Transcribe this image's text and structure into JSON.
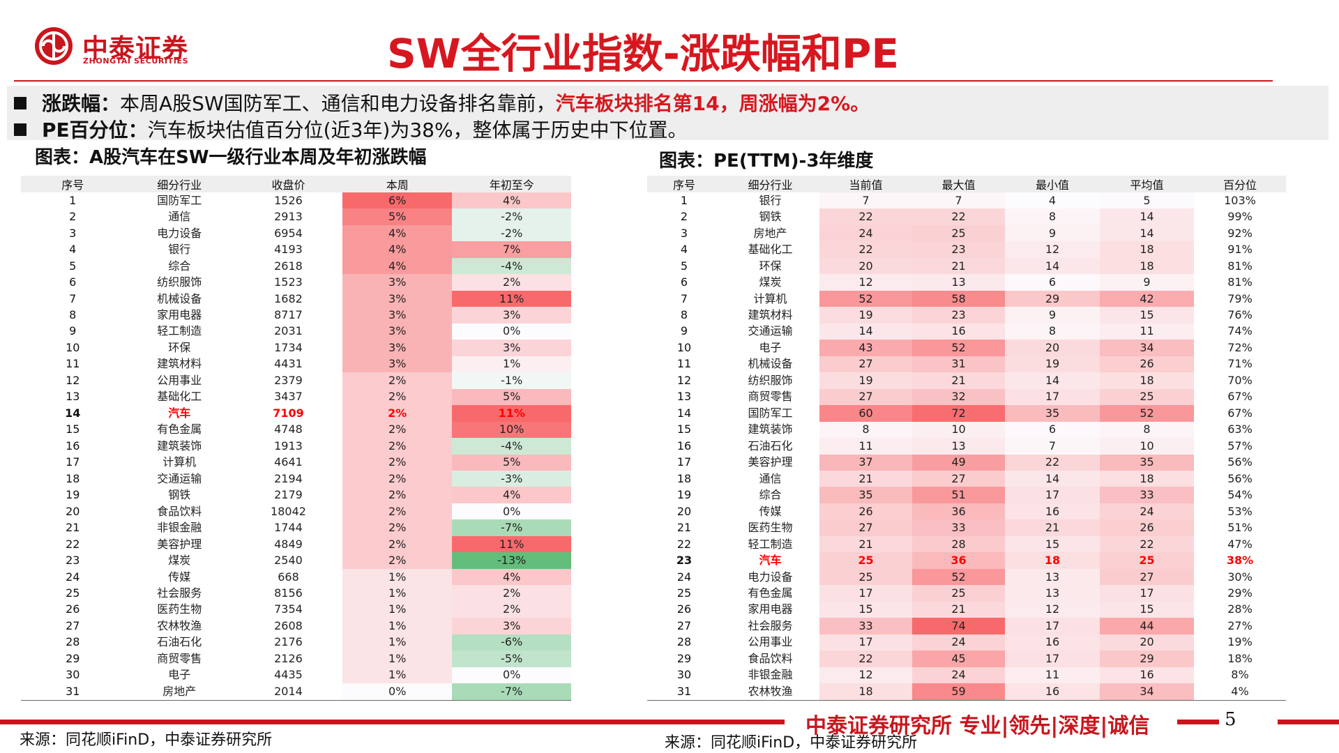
{
  "header": {
    "logo_cn": "中泰证券",
    "logo_en": "ZHONGTAI SECURITIES",
    "title": "SW全行业指数-涨跌幅和PE"
  },
  "bullets": {
    "b1_label": "涨跌幅：",
    "b1_text": "本周A股SW国防军工、通信和电力设备排名靠前，",
    "b1_red": "汽车板块排名第14，周涨幅为2%。",
    "b2_label": "PE百分位：",
    "b2_text": "汽车板块估值百分位(近3年)为38%，整体属于历史中下位置。"
  },
  "table1": {
    "title": "图表：A股汽车在SW一级行业本周及年初涨跌幅",
    "headers": [
      "序号",
      "细分行业",
      "收盘价",
      "本周",
      "年初至今"
    ],
    "highlight_index": 13,
    "rows": [
      [
        "1",
        "国防军工",
        "1526",
        "6%",
        "4%"
      ],
      [
        "2",
        "通信",
        "2913",
        "5%",
        "-2%"
      ],
      [
        "3",
        "电力设备",
        "6954",
        "4%",
        "-2%"
      ],
      [
        "4",
        "银行",
        "4193",
        "4%",
        "7%"
      ],
      [
        "5",
        "综合",
        "2618",
        "4%",
        "-4%"
      ],
      [
        "6",
        "纺织服饰",
        "1523",
        "3%",
        "2%"
      ],
      [
        "7",
        "机械设备",
        "1682",
        "3%",
        "11%"
      ],
      [
        "8",
        "家用电器",
        "8717",
        "3%",
        "3%"
      ],
      [
        "9",
        "轻工制造",
        "2031",
        "3%",
        "0%"
      ],
      [
        "10",
        "环保",
        "1734",
        "3%",
        "3%"
      ],
      [
        "11",
        "建筑材料",
        "4431",
        "3%",
        "1%"
      ],
      [
        "12",
        "公用事业",
        "2379",
        "2%",
        "-1%"
      ],
      [
        "13",
        "基础化工",
        "3437",
        "2%",
        "5%"
      ],
      [
        "14",
        "汽车",
        "7109",
        "2%",
        "11%"
      ],
      [
        "15",
        "有色金属",
        "4748",
        "2%",
        "10%"
      ],
      [
        "16",
        "建筑装饰",
        "1913",
        "2%",
        "-4%"
      ],
      [
        "17",
        "计算机",
        "4641",
        "2%",
        "5%"
      ],
      [
        "18",
        "交通运输",
        "2194",
        "2%",
        "-3%"
      ],
      [
        "19",
        "钢铁",
        "2179",
        "2%",
        "4%"
      ],
      [
        "20",
        "食品饮料",
        "18042",
        "2%",
        "0%"
      ],
      [
        "21",
        "非银金融",
        "1744",
        "2%",
        "-7%"
      ],
      [
        "22",
        "美容护理",
        "4849",
        "2%",
        "11%"
      ],
      [
        "23",
        "煤炭",
        "2540",
        "2%",
        "-13%"
      ],
      [
        "24",
        "传媒",
        "668",
        "1%",
        "4%"
      ],
      [
        "25",
        "社会服务",
        "8156",
        "1%",
        "2%"
      ],
      [
        "26",
        "医药生物",
        "7354",
        "1%",
        "2%"
      ],
      [
        "27",
        "农林牧渔",
        "2608",
        "1%",
        "3%"
      ],
      [
        "28",
        "石油石化",
        "2176",
        "1%",
        "-6%"
      ],
      [
        "29",
        "商贸零售",
        "2126",
        "1%",
        "-5%"
      ],
      [
        "30",
        "电子",
        "4435",
        "1%",
        "0%"
      ],
      [
        "31",
        "房地产",
        "2014",
        "0%",
        "-7%"
      ]
    ]
  },
  "table2": {
    "title": "图表：PE(TTM)-3年维度",
    "headers": [
      "序号",
      "细分行业",
      "当前值",
      "最大值",
      "最小值",
      "平均值",
      "百分位"
    ],
    "highlight_index": 22,
    "rows": [
      [
        "1",
        "银行",
        "7",
        "7",
        "4",
        "5",
        "103%"
      ],
      [
        "2",
        "钢铁",
        "22",
        "22",
        "8",
        "14",
        "99%"
      ],
      [
        "3",
        "房地产",
        "24",
        "25",
        "9",
        "14",
        "92%"
      ],
      [
        "4",
        "基础化工",
        "22",
        "23",
        "12",
        "18",
        "91%"
      ],
      [
        "5",
        "环保",
        "20",
        "21",
        "14",
        "18",
        "81%"
      ],
      [
        "6",
        "煤炭",
        "12",
        "13",
        "6",
        "9",
        "81%"
      ],
      [
        "7",
        "计算机",
        "52",
        "58",
        "29",
        "42",
        "79%"
      ],
      [
        "8",
        "建筑材料",
        "19",
        "23",
        "9",
        "15",
        "76%"
      ],
      [
        "9",
        "交通运输",
        "14",
        "16",
        "8",
        "11",
        "74%"
      ],
      [
        "10",
        "电子",
        "43",
        "52",
        "20",
        "34",
        "72%"
      ],
      [
        "11",
        "机械设备",
        "27",
        "31",
        "19",
        "26",
        "71%"
      ],
      [
        "12",
        "纺织服饰",
        "19",
        "21",
        "14",
        "18",
        "70%"
      ],
      [
        "13",
        "商贸零售",
        "27",
        "32",
        "17",
        "25",
        "67%"
      ],
      [
        "14",
        "国防军工",
        "60",
        "72",
        "35",
        "52",
        "67%"
      ],
      [
        "15",
        "建筑装饰",
        "8",
        "10",
        "6",
        "8",
        "63%"
      ],
      [
        "16",
        "石油石化",
        "11",
        "13",
        "7",
        "10",
        "57%"
      ],
      [
        "17",
        "美容护理",
        "37",
        "49",
        "22",
        "35",
        "56%"
      ],
      [
        "18",
        "通信",
        "21",
        "27",
        "14",
        "18",
        "56%"
      ],
      [
        "19",
        "综合",
        "35",
        "51",
        "17",
        "33",
        "54%"
      ],
      [
        "20",
        "传媒",
        "26",
        "36",
        "16",
        "24",
        "53%"
      ],
      [
        "21",
        "医药生物",
        "27",
        "33",
        "21",
        "26",
        "51%"
      ],
      [
        "22",
        "轻工制造",
        "21",
        "28",
        "15",
        "22",
        "47%"
      ],
      [
        "23",
        "汽车",
        "25",
        "36",
        "18",
        "25",
        "38%"
      ],
      [
        "24",
        "电力设备",
        "25",
        "52",
        "13",
        "27",
        "30%"
      ],
      [
        "25",
        "有色金属",
        "17",
        "25",
        "13",
        "17",
        "29%"
      ],
      [
        "26",
        "家用电器",
        "15",
        "21",
        "12",
        "15",
        "28%"
      ],
      [
        "27",
        "社会服务",
        "33",
        "74",
        "17",
        "44",
        "27%"
      ],
      [
        "28",
        "公用事业",
        "17",
        "24",
        "16",
        "20",
        "19%"
      ],
      [
        "29",
        "食品饮料",
        "22",
        "45",
        "17",
        "29",
        "18%"
      ],
      [
        "30",
        "非银金融",
        "12",
        "24",
        "11",
        "16",
        "8%"
      ],
      [
        "31",
        "农林牧渔",
        "18",
        "59",
        "16",
        "34",
        "4%"
      ]
    ]
  },
  "sources": {
    "s1": "来源：同花顺iFinD，中泰证券研究所",
    "s2": "来源：同花顺iFinD，中泰证券研究所"
  },
  "footer": {
    "slogan": "中泰证券研究所 专业|领先|深度|诚信",
    "page": "5"
  },
  "colors": {
    "brand_red": "#c8161d",
    "title_red": "#d7171f",
    "heat_red": "#f8696b",
    "heat_green": "#63be7b",
    "neutral": "#fcfcff"
  }
}
